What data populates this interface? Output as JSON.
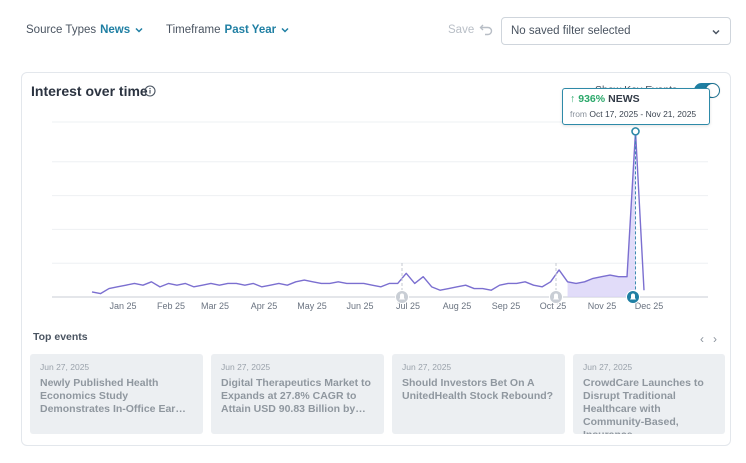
{
  "filters": {
    "source_types_label": "Source Types",
    "source_types_value": "News",
    "timeframe_label": "Timeframe",
    "timeframe_value": "Past Year",
    "save_label": "Save",
    "saved_filter_placeholder": "No saved filter selected"
  },
  "card": {
    "title": "Interest over time",
    "show_key_events_label": "Show Key Events",
    "show_key_events_on": true
  },
  "tooltip": {
    "percent": "936%",
    "source": "NEWS",
    "from_label": "from",
    "range": "Oct 17, 2025 - Nov 21, 2025"
  },
  "chart_data": {
    "type": "line",
    "x_tick_labels": [
      "Jan 25",
      "Feb 25",
      "Mar 25",
      "Apr 25",
      "May 25",
      "Jun 25",
      "Jul 25",
      "Aug 25",
      "Sep 25",
      "Oct 25",
      "Nov 25",
      "Dec 25"
    ],
    "values": [
      3,
      2,
      5,
      6,
      7,
      8,
      7,
      9,
      6,
      8,
      7,
      8,
      6,
      7,
      8,
      7,
      8,
      8,
      7,
      8,
      6,
      7,
      8,
      7,
      9,
      10,
      9,
      8,
      8,
      9,
      8,
      8,
      8,
      7,
      6,
      8,
      8,
      14,
      8,
      12,
      6,
      4,
      5,
      6,
      7,
      5,
      5,
      4,
      7,
      8,
      8,
      9,
      7,
      6,
      9,
      16,
      9,
      8,
      9,
      11,
      12,
      13,
      12,
      12,
      98,
      4
    ],
    "highlight_range": "Oct 17, 2025 - Nov 21, 2025",
    "ylim": [
      0,
      100
    ],
    "key_event_markers": [
      "Jul 25",
      "Oct 25",
      "Dec 25"
    ],
    "grid": true,
    "line_color": "#7b6fd0",
    "fill_color": "#d9d3f7"
  },
  "top_events": {
    "label": "Top events",
    "items": [
      {
        "date": "Jun 27, 2025",
        "headline": "Newly Published Health Economics Study Demonstrates In-Office Ear…"
      },
      {
        "date": "Jun 27, 2025",
        "headline": "Digital Therapeutics Market to Expands at 27.8% CAGR to Attain USD 90.83 Billion by…"
      },
      {
        "date": "Jun 27, 2025",
        "headline": "Should Investors Bet On A UnitedHealth Stock Rebound?"
      },
      {
        "date": "Jun 27, 2025",
        "headline": "CrowdCare Launches to Disrupt Traditional Healthcare with Community-Based, Insurance"
      }
    ]
  },
  "colors": {
    "accent": "#1f7fa3",
    "positive": "#2aa86a",
    "line": "#7b6fd0"
  }
}
